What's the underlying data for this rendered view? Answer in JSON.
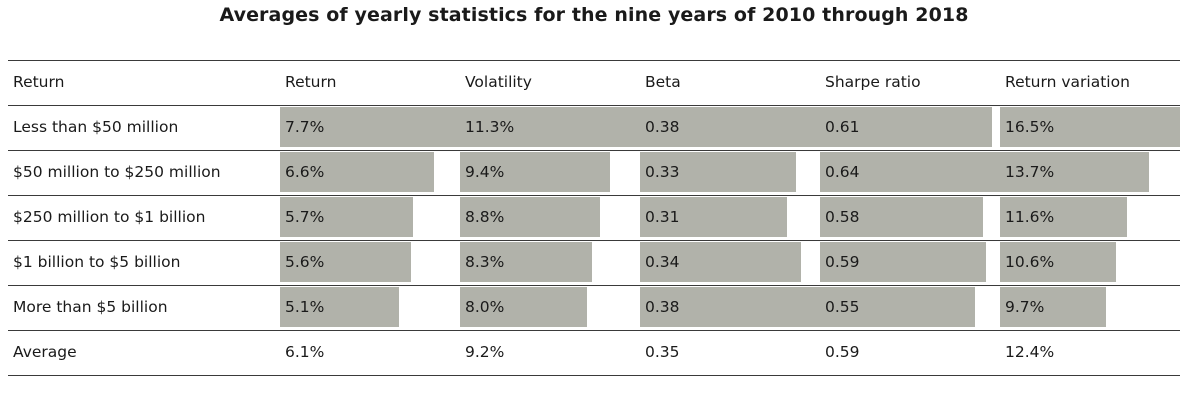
{
  "title": "Averages of yearly statistics for the nine years of 2010 through 2018",
  "table": {
    "columns": [
      "Return",
      "Return",
      "Volatility",
      "Beta",
      "Sharpe ratio",
      "Return variation"
    ],
    "rows": [
      {
        "label": "Less than $50 million",
        "cells": [
          "7.7%",
          "11.3%",
          "0.38",
          "0.61",
          "16.5%"
        ]
      },
      {
        "label": "$50 million to $250 million",
        "cells": [
          "6.6%",
          "9.4%",
          "0.33",
          "0.64",
          "13.7%"
        ]
      },
      {
        "label": "$250 million to $1 billion",
        "cells": [
          "5.7%",
          "8.8%",
          "0.31",
          "0.58",
          "11.6%"
        ]
      },
      {
        "label": "$1 billion to $5 billion",
        "cells": [
          "5.6%",
          "8.3%",
          "0.34",
          "0.59",
          "10.6%"
        ]
      },
      {
        "label": "More than $5 billion",
        "cells": [
          "5.1%",
          "8.0%",
          "0.38",
          "0.55",
          "9.7%"
        ]
      }
    ],
    "average": {
      "label": "Average",
      "cells": [
        "6.1%",
        "9.2%",
        "0.35",
        "0.59",
        "12.4%"
      ]
    }
  },
  "chart_data": {
    "type": "table",
    "title": "Averages of yearly statistics for the nine years of 2010 through 2018",
    "row_header": "Return",
    "categories": [
      "Less than $50 million",
      "$50 million to $250 million",
      "$250 million to $1 billion",
      "$1 billion to $5 billion",
      "More than $5 billion"
    ],
    "series": [
      {
        "name": "Return",
        "unit": "%",
        "values": [
          7.7,
          6.6,
          5.7,
          5.6,
          5.1
        ],
        "average": 6.1
      },
      {
        "name": "Volatility",
        "unit": "%",
        "values": [
          11.3,
          9.4,
          8.8,
          8.3,
          8.0
        ],
        "average": 9.2
      },
      {
        "name": "Beta",
        "unit": "",
        "values": [
          0.38,
          0.33,
          0.31,
          0.34,
          0.38
        ],
        "average": 0.35
      },
      {
        "name": "Sharpe ratio",
        "unit": "",
        "values": [
          0.61,
          0.64,
          0.58,
          0.59,
          0.55
        ],
        "average": 0.59
      },
      {
        "name": "Return variation",
        "unit": "%",
        "values": [
          16.5,
          13.7,
          11.6,
          10.6,
          9.7
        ],
        "average": 12.4
      }
    ],
    "bar_color": "#b1b2aa",
    "grid": false
  }
}
